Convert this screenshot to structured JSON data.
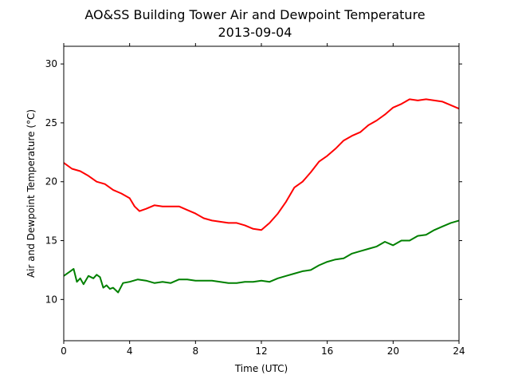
{
  "chart_data": {
    "type": "line",
    "title": "AO&SS Building Tower Air and Dewpoint Temperature",
    "subtitle": "2013-09-04",
    "xlabel": "Time (UTC)",
    "ylabel": "Air and Dewpoint Temperature (°C)",
    "xlim": [
      0,
      24
    ],
    "ylim": [
      6.5,
      31.5
    ],
    "xticks": [
      0,
      4,
      8,
      12,
      16,
      20,
      24
    ],
    "xtick_labels": [
      "0",
      "4",
      "8",
      "12",
      "16",
      "20",
      "24"
    ],
    "yticks": [
      10,
      15,
      20,
      25,
      30
    ],
    "ytick_labels": [
      "10",
      "15",
      "20",
      "25",
      "30"
    ],
    "grid": false,
    "legend": "none",
    "series": [
      {
        "color": "#ff0000",
        "x": [
          0,
          0.5,
          1,
          1.5,
          2,
          2.5,
          3,
          3.5,
          4,
          4.3,
          4.6,
          5,
          5.5,
          6,
          6.5,
          7,
          7.5,
          8,
          8.5,
          9,
          9.5,
          10,
          10.5,
          11,
          11.5,
          12,
          12.5,
          13,
          13.5,
          14,
          14.5,
          15,
          15.5,
          16,
          16.5,
          17,
          17.5,
          18,
          18.5,
          19,
          19.5,
          20,
          20.5,
          21,
          21.5,
          22,
          22.5,
          23,
          23.5,
          24
        ],
        "y": [
          21.6,
          21.1,
          20.9,
          20.5,
          20.0,
          19.8,
          19.3,
          19.0,
          18.6,
          17.9,
          17.5,
          17.7,
          18.0,
          17.9,
          17.9,
          17.9,
          17.6,
          17.3,
          16.9,
          16.7,
          16.6,
          16.5,
          16.5,
          16.3,
          16.0,
          15.9,
          16.5,
          17.3,
          18.3,
          19.5,
          20.0,
          20.8,
          21.7,
          22.2,
          22.8,
          23.5,
          23.9,
          24.2,
          24.8,
          25.2,
          25.7,
          26.3,
          26.6,
          27.0,
          26.9,
          27.0,
          26.9,
          26.8,
          26.5,
          26.2
        ]
      },
      {
        "color": "#008000",
        "x": [
          0,
          0.3,
          0.6,
          0.8,
          1.0,
          1.2,
          1.5,
          1.8,
          2.0,
          2.2,
          2.4,
          2.6,
          2.8,
          3.0,
          3.3,
          3.6,
          4.0,
          4.5,
          5.0,
          5.5,
          6.0,
          6.5,
          7.0,
          7.5,
          8.0,
          8.5,
          9.0,
          9.5,
          10,
          10.5,
          11,
          11.5,
          12,
          12.5,
          13,
          13.5,
          14,
          14.5,
          15,
          15.5,
          16,
          16.5,
          17,
          17.5,
          18,
          18.5,
          19,
          19.5,
          20,
          20.5,
          21,
          21.5,
          22,
          22.5,
          23,
          23.5,
          24
        ],
        "y": [
          12.0,
          12.3,
          12.6,
          11.5,
          11.8,
          11.3,
          12.0,
          11.8,
          12.1,
          11.9,
          11.0,
          11.2,
          10.9,
          11.0,
          10.6,
          11.4,
          11.5,
          11.7,
          11.6,
          11.4,
          11.5,
          11.4,
          11.7,
          11.7,
          11.6,
          11.6,
          11.6,
          11.5,
          11.4,
          11.4,
          11.5,
          11.5,
          11.6,
          11.5,
          11.8,
          12.0,
          12.2,
          12.4,
          12.5,
          12.9,
          13.2,
          13.4,
          13.5,
          13.9,
          14.1,
          14.3,
          14.5,
          14.9,
          14.6,
          15.0,
          15.0,
          15.4,
          15.5,
          15.9,
          16.2,
          16.5,
          16.7
        ]
      }
    ]
  }
}
